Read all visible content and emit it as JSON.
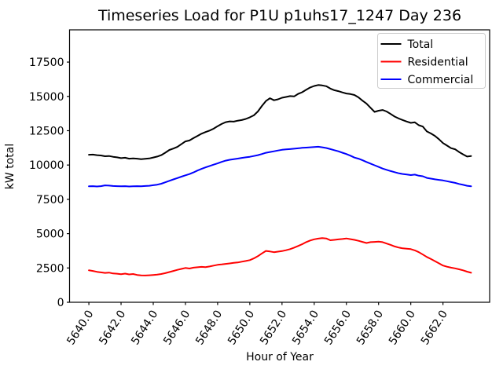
{
  "figure": {
    "title": "Timeseries Load for P1U p1uhs17_1247  Day 236",
    "xlabel": "Hour of Year",
    "ylabel": "kW total",
    "background": "#ffffff"
  },
  "chart_data": {
    "type": "line",
    "title": "Timeseries Load for P1U p1uhs17_1247  Day 236",
    "xlabel": "Hour of Year",
    "ylabel": "kW total",
    "grid": false,
    "legend_position": "upper right",
    "legend_frame_color": "#cccccc",
    "xlim": [
      5638.8,
      5664.9
    ],
    "ylim": [
      0,
      19850
    ],
    "xticks": [
      5640.0,
      5642.0,
      5644.0,
      5646.0,
      5648.0,
      5650.0,
      5652.0,
      5654.0,
      5656.0,
      5658.0,
      5660.0,
      5662.0
    ],
    "yticks": [
      0,
      2500,
      5000,
      7500,
      10000,
      12500,
      15000,
      17500
    ],
    "x_start": 5640.0,
    "x_step": 0.25,
    "series": [
      {
        "name": "Total",
        "color": "#000000",
        "values": [
          10750,
          10760,
          10720,
          10700,
          10640,
          10660,
          10600,
          10560,
          10500,
          10530,
          10460,
          10480,
          10460,
          10430,
          10450,
          10480,
          10550,
          10620,
          10720,
          10900,
          11100,
          11200,
          11320,
          11520,
          11720,
          11790,
          11960,
          12120,
          12280,
          12400,
          12510,
          12650,
          12830,
          12990,
          13120,
          13180,
          13160,
          13230,
          13280,
          13360,
          13480,
          13620,
          13900,
          14300,
          14660,
          14870,
          14720,
          14790,
          14900,
          14960,
          15020,
          15000,
          15180,
          15300,
          15480,
          15650,
          15760,
          15830,
          15800,
          15740,
          15570,
          15450,
          15380,
          15290,
          15210,
          15170,
          15100,
          14930,
          14690,
          14480,
          14170,
          13870,
          13960,
          14010,
          13900,
          13720,
          13530,
          13390,
          13280,
          13170,
          13070,
          13110,
          12900,
          12800,
          12450,
          12300,
          12120,
          11880,
          11600,
          11420,
          11230,
          11150,
          10950,
          10780,
          10620,
          10660
        ]
      },
      {
        "name": "Residential",
        "color": "#ff0000",
        "values": [
          2330,
          2280,
          2220,
          2180,
          2140,
          2160,
          2100,
          2080,
          2050,
          2090,
          2030,
          2060,
          1990,
          1960,
          1950,
          1970,
          1990,
          2020,
          2060,
          2120,
          2200,
          2280,
          2360,
          2430,
          2500,
          2460,
          2520,
          2550,
          2580,
          2560,
          2610,
          2670,
          2730,
          2760,
          2800,
          2830,
          2870,
          2900,
          2960,
          3010,
          3070,
          3200,
          3360,
          3560,
          3740,
          3700,
          3650,
          3690,
          3730,
          3790,
          3870,
          3980,
          4100,
          4230,
          4380,
          4500,
          4590,
          4640,
          4680,
          4650,
          4520,
          4550,
          4580,
          4610,
          4650,
          4600,
          4550,
          4480,
          4400,
          4320,
          4380,
          4400,
          4420,
          4380,
          4280,
          4180,
          4070,
          3990,
          3930,
          3900,
          3870,
          3780,
          3650,
          3480,
          3300,
          3150,
          3000,
          2840,
          2680,
          2590,
          2520,
          2470,
          2400,
          2330,
          2230,
          2150
        ]
      },
      {
        "name": "Commercial",
        "color": "#0000ff",
        "values": [
          8450,
          8460,
          8440,
          8460,
          8520,
          8500,
          8470,
          8460,
          8450,
          8460,
          8440,
          8450,
          8460,
          8450,
          8470,
          8490,
          8530,
          8570,
          8640,
          8740,
          8850,
          8950,
          9050,
          9150,
          9250,
          9340,
          9460,
          9600,
          9720,
          9830,
          9930,
          10030,
          10120,
          10230,
          10320,
          10380,
          10430,
          10470,
          10520,
          10560,
          10600,
          10660,
          10720,
          10800,
          10890,
          10950,
          11000,
          11060,
          11110,
          11140,
          11160,
          11190,
          11220,
          11250,
          11270,
          11290,
          11310,
          11330,
          11290,
          11240,
          11160,
          11080,
          11000,
          10900,
          10800,
          10680,
          10540,
          10460,
          10350,
          10220,
          10100,
          9980,
          9860,
          9740,
          9650,
          9560,
          9480,
          9400,
          9350,
          9310,
          9270,
          9300,
          9220,
          9180,
          9060,
          9010,
          8960,
          8920,
          8880,
          8820,
          8760,
          8700,
          8620,
          8560,
          8490,
          8450
        ]
      }
    ]
  }
}
